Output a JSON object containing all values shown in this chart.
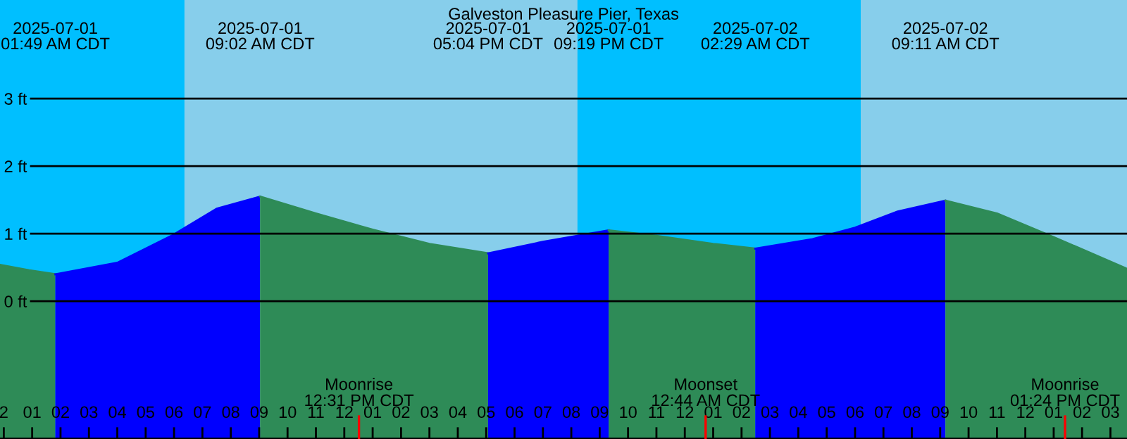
{
  "chart_data": {
    "type": "area",
    "title": "Galveston Pleasure Pier, Texas",
    "series": [
      {
        "color": "#2e8b57",
        "x": [
          "2025-06-30T23:52",
          "2025-07-01T00:54",
          "2025-07-01T01:49"
        ],
        "values": [
          0.54,
          0.46,
          0.4
        ]
      },
      {
        "color": "#0000ff",
        "x": [
          "2025-07-01T01:49",
          "2025-07-01T04:00",
          "2025-07-01T06:00",
          "2025-07-01T07:30",
          "2025-07-01T09:02"
        ],
        "values": [
          0.4,
          0.57,
          0.99,
          1.37,
          1.55
        ]
      },
      {
        "color": "#2e8b57",
        "x": [
          "2025-07-01T09:02",
          "2025-07-01T11:00",
          "2025-07-01T13:00",
          "2025-07-01T15:00",
          "2025-07-01T17:04"
        ],
        "values": [
          1.55,
          1.3,
          1.06,
          0.85,
          0.71
        ]
      },
      {
        "color": "#0000ff",
        "x": [
          "2025-07-01T17:04",
          "2025-07-01T19:00",
          "2025-07-01T21:19"
        ],
        "values": [
          0.71,
          0.88,
          1.05
        ]
      },
      {
        "color": "#2e8b57",
        "x": [
          "2025-07-01T21:19",
          "2025-07-01T23:00",
          "2025-07-02T01:00",
          "2025-07-02T02:29"
        ],
        "values": [
          1.05,
          0.97,
          0.85,
          0.78
        ]
      },
      {
        "color": "#0000ff",
        "x": [
          "2025-07-02T02:29",
          "2025-07-02T04:30",
          "2025-07-02T06:00",
          "2025-07-02T07:30",
          "2025-07-02T09:11"
        ],
        "values": [
          0.78,
          0.92,
          1.09,
          1.33,
          1.49
        ]
      },
      {
        "color": "#2e8b57",
        "x": [
          "2025-07-02T09:11",
          "2025-07-02T11:00",
          "2025-07-02T13:00",
          "2025-07-02T15:35"
        ],
        "values": [
          1.49,
          1.3,
          0.95,
          0.48
        ]
      }
    ],
    "xlim": [
      "2025-06-30T23:52",
      "2025-07-02T15:35"
    ],
    "ylim": [
      -2.04,
      4.46
    ],
    "yticks": [
      {
        "value": 0,
        "label": "0 ft"
      },
      {
        "value": 1,
        "label": "1 ft"
      },
      {
        "value": 2,
        "label": "2 ft"
      },
      {
        "value": 3,
        "label": "3 ft"
      }
    ],
    "xticks": [
      {
        "value": "2025-07-01T00:00",
        "label": "2"
      },
      {
        "value": "2025-07-01T01:00",
        "label": "01"
      },
      {
        "value": "2025-07-01T02:00",
        "label": "02"
      },
      {
        "value": "2025-07-01T03:00",
        "label": "03"
      },
      {
        "value": "2025-07-01T04:00",
        "label": "04"
      },
      {
        "value": "2025-07-01T05:00",
        "label": "05"
      },
      {
        "value": "2025-07-01T06:00",
        "label": "06"
      },
      {
        "value": "2025-07-01T07:00",
        "label": "07"
      },
      {
        "value": "2025-07-01T08:00",
        "label": "08"
      },
      {
        "value": "2025-07-01T09:00",
        "label": "09"
      },
      {
        "value": "2025-07-01T10:00",
        "label": "10"
      },
      {
        "value": "2025-07-01T11:00",
        "label": "11"
      },
      {
        "value": "2025-07-01T12:00",
        "label": "12"
      },
      {
        "value": "2025-07-01T13:00",
        "label": "01"
      },
      {
        "value": "2025-07-01T14:00",
        "label": "02"
      },
      {
        "value": "2025-07-01T15:00",
        "label": "03"
      },
      {
        "value": "2025-07-01T16:00",
        "label": "04"
      },
      {
        "value": "2025-07-01T17:00",
        "label": "05"
      },
      {
        "value": "2025-07-01T18:00",
        "label": "06"
      },
      {
        "value": "2025-07-01T19:00",
        "label": "07"
      },
      {
        "value": "2025-07-01T20:00",
        "label": "08"
      },
      {
        "value": "2025-07-01T21:00",
        "label": "09"
      },
      {
        "value": "2025-07-01T22:00",
        "label": "10"
      },
      {
        "value": "2025-07-01T23:00",
        "label": "11"
      },
      {
        "value": "2025-07-02T00:00",
        "label": "12"
      },
      {
        "value": "2025-07-02T01:00",
        "label": "01"
      },
      {
        "value": "2025-07-02T02:00",
        "label": "02"
      },
      {
        "value": "2025-07-02T03:00",
        "label": "03"
      },
      {
        "value": "2025-07-02T04:00",
        "label": "04"
      },
      {
        "value": "2025-07-02T05:00",
        "label": "05"
      },
      {
        "value": "2025-07-02T06:00",
        "label": "06"
      },
      {
        "value": "2025-07-02T07:00",
        "label": "07"
      },
      {
        "value": "2025-07-02T08:00",
        "label": "08"
      },
      {
        "value": "2025-07-02T09:00",
        "label": "09"
      },
      {
        "value": "2025-07-02T10:00",
        "label": "10"
      },
      {
        "value": "2025-07-02T11:00",
        "label": "11"
      },
      {
        "value": "2025-07-02T12:00",
        "label": "12"
      },
      {
        "value": "2025-07-02T13:00",
        "label": "01"
      },
      {
        "value": "2025-07-02T14:00",
        "label": "02"
      },
      {
        "value": "2025-07-02T15:00",
        "label": "03"
      }
    ],
    "x2lim": [
      "2025-06-30T23:52",
      "2025-07-02T15:35"
    ],
    "x2ticks": [
      {
        "value": "2025-07-01T01:49",
        "label": "2025-07-01\n01:49 AM CDT"
      },
      {
        "value": "2025-07-01T09:02",
        "label": "2025-07-01\n09:02 AM CDT"
      },
      {
        "value": "2025-07-01T17:04",
        "label": "2025-07-01\n05:04 PM CDT"
      },
      {
        "value": "2025-07-01T21:19",
        "label": "2025-07-01\n09:19 PM CDT"
      },
      {
        "value": "2025-07-02T02:29",
        "label": "2025-07-02\n02:29 AM CDT"
      },
      {
        "value": "2025-07-02T09:11",
        "label": "2025-07-02\n09:11 AM CDT"
      }
    ],
    "grid": "y",
    "bands": [
      {
        "axis": "x",
        "from": "2025-06-30T23:52",
        "to": "2025-07-01T06:22",
        "color": "#00bfff"
      },
      {
        "axis": "x",
        "from": "2025-07-01T20:13",
        "to": "2025-07-02T06:12",
        "color": "#00bfff"
      }
    ],
    "ref_lines": [
      {
        "axis": "x",
        "value": "2025-07-01T12:31",
        "label": "Moonrise\n12:31 PM CDT",
        "color": "#ff0000"
      },
      {
        "axis": "x",
        "value": "2025-07-02T00:44",
        "label": "Moonset\n12:44 AM CDT",
        "color": "#ff0000"
      },
      {
        "axis": "x",
        "value": "2025-07-02T13:24",
        "label": "Moonrise\n01:24 PM CDT",
        "color": "#ff0000"
      }
    ]
  }
}
